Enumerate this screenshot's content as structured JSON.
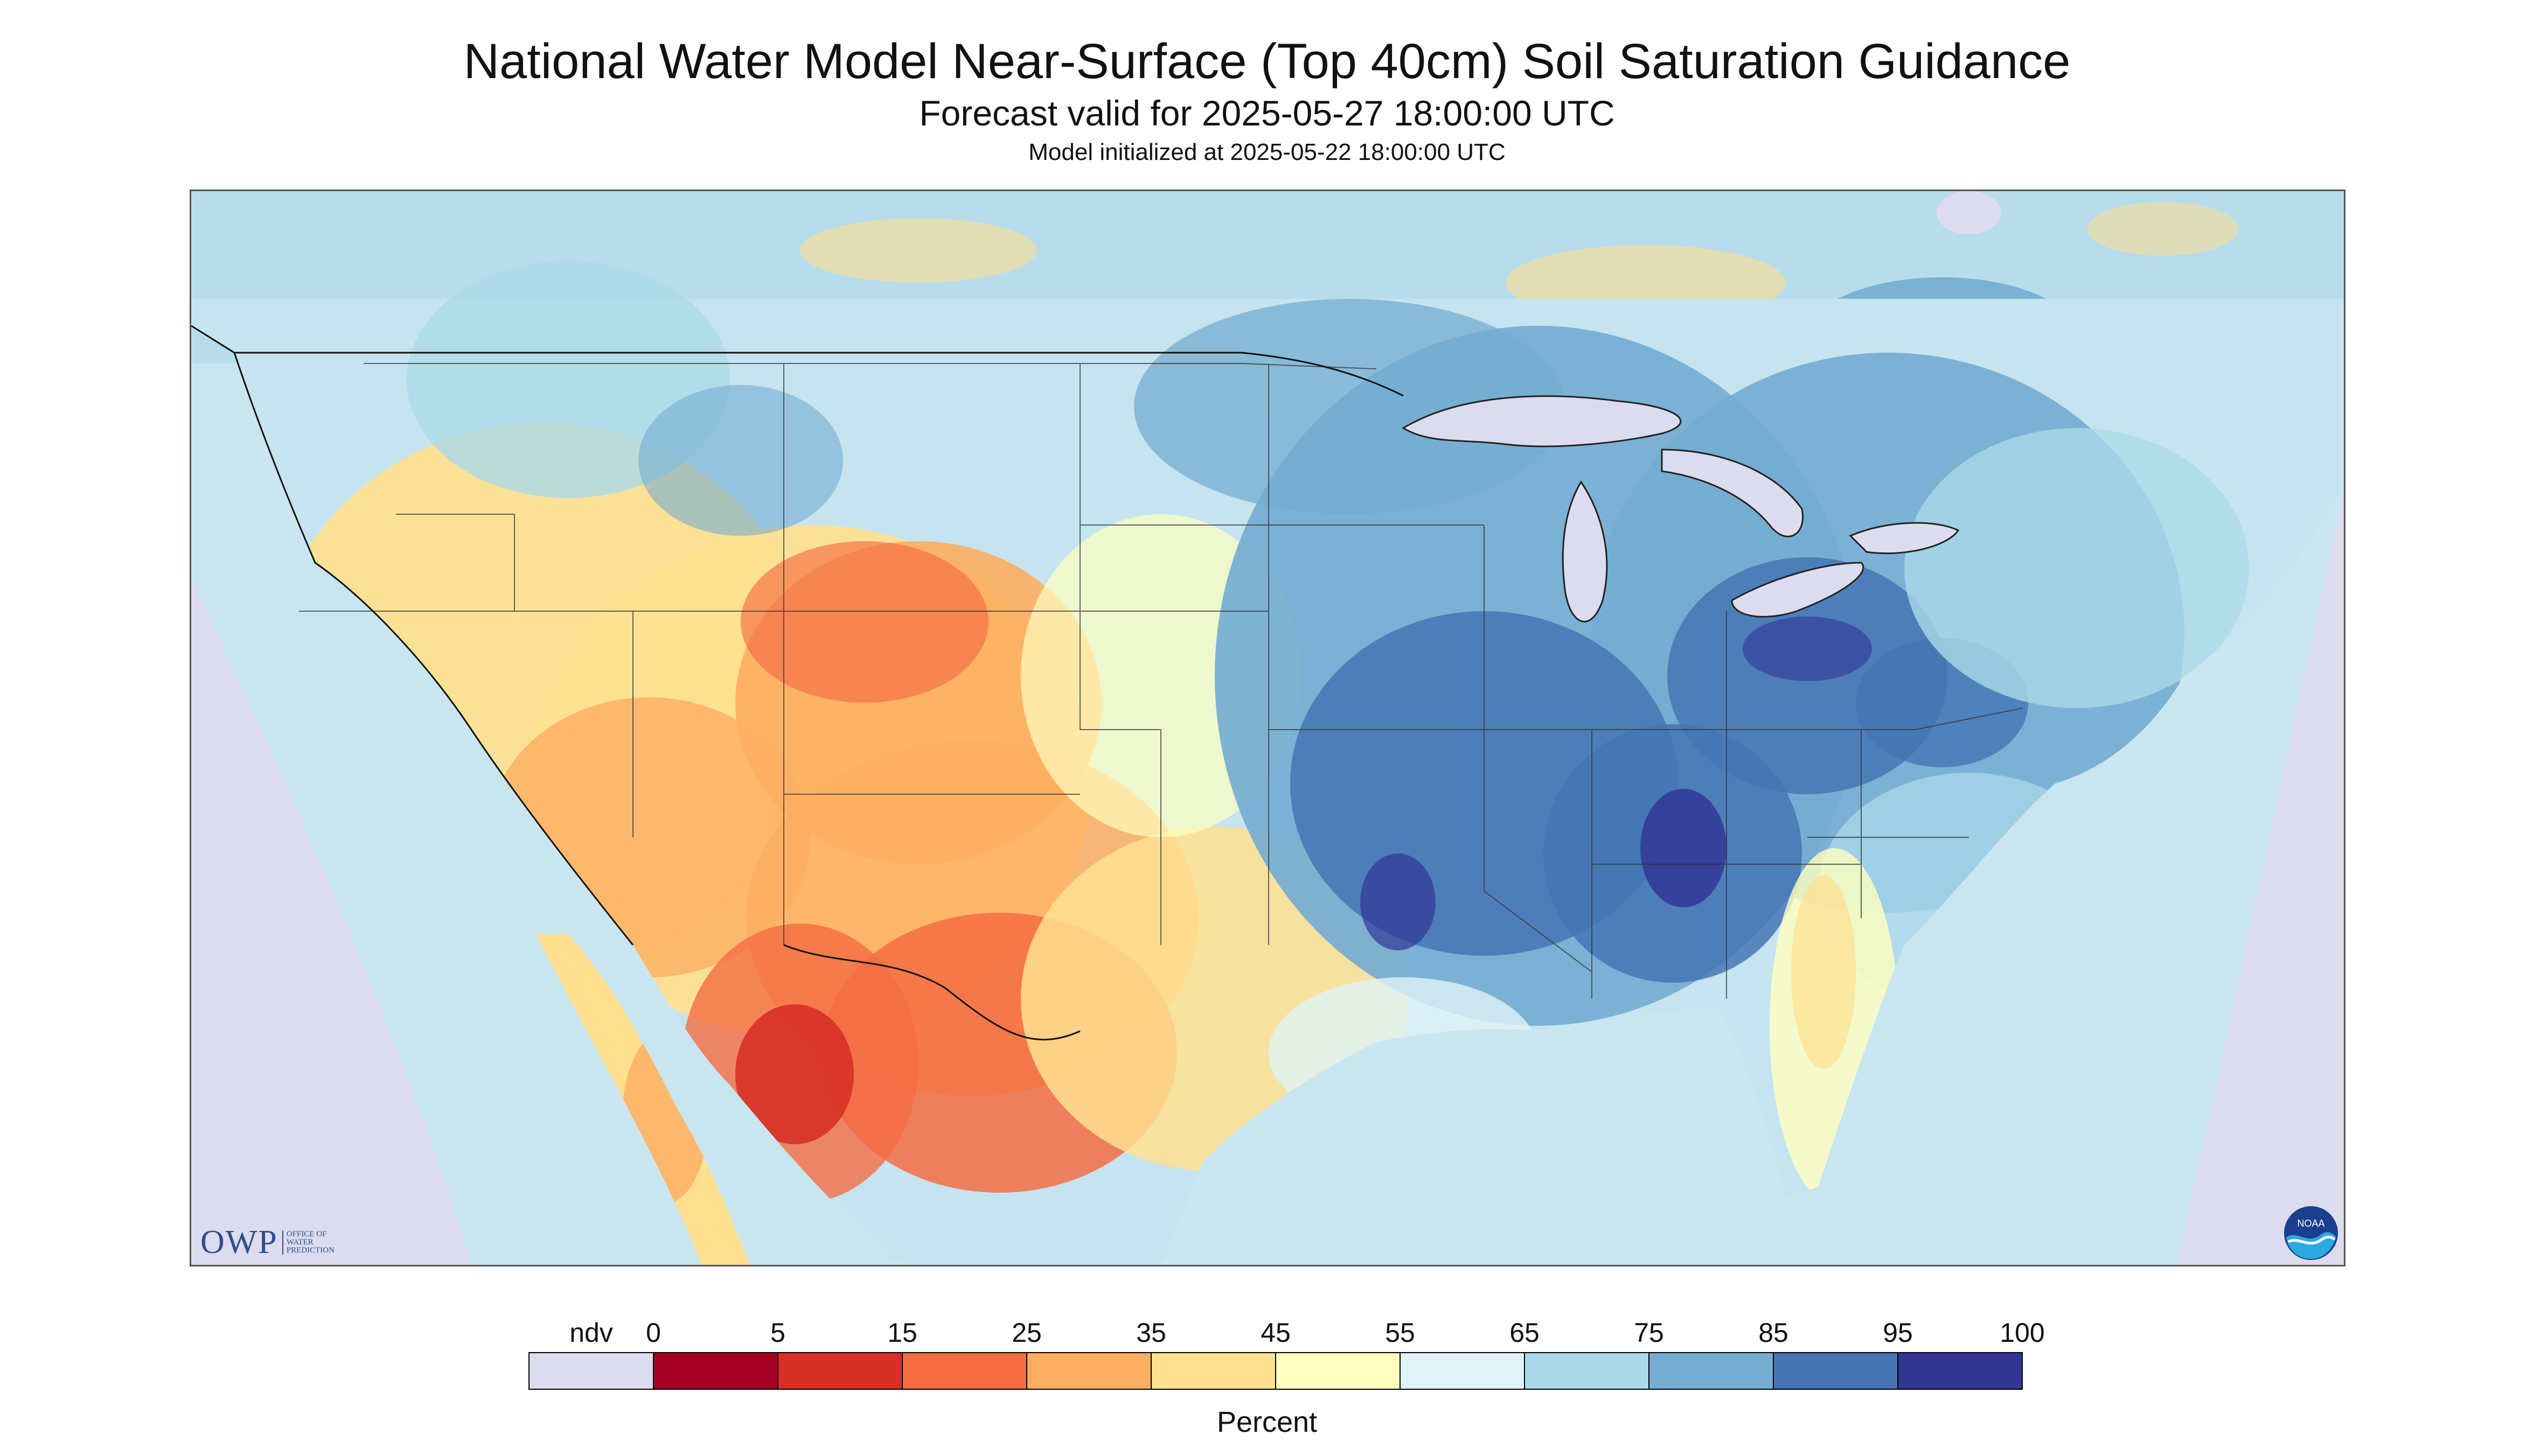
{
  "header": {
    "title": "National Water Model Near-Surface (Top 40cm) Soil Saturation Guidance",
    "forecast_line": "Forecast valid for 2025-05-27 18:00:00 UTC",
    "init_line": "Model initialized at 2025-05-22 18:00:00 UTC"
  },
  "logos": {
    "owp_text": "OWP",
    "owp_sub": [
      "Office of",
      "Water",
      "Prediction"
    ],
    "noaa_text": "NOAA"
  },
  "legend": {
    "title": "Percent",
    "ndv_label": "ndv",
    "ndv_color": "#dcdcee",
    "ticks": [
      "0",
      "5",
      "15",
      "25",
      "35",
      "45",
      "55",
      "65",
      "75",
      "85",
      "95",
      "100"
    ],
    "bins": [
      {
        "from": 0,
        "to": 5,
        "color": "#a50026"
      },
      {
        "from": 5,
        "to": 15,
        "color": "#d73027"
      },
      {
        "from": 15,
        "to": 25,
        "color": "#f46d43"
      },
      {
        "from": 25,
        "to": 35,
        "color": "#fdae61"
      },
      {
        "from": 35,
        "to": 45,
        "color": "#fee090"
      },
      {
        "from": 45,
        "to": 55,
        "color": "#ffffbf"
      },
      {
        "from": 55,
        "to": 65,
        "color": "#e0f3f8"
      },
      {
        "from": 65,
        "to": 75,
        "color": "#abd9e9"
      },
      {
        "from": 75,
        "to": 85,
        "color": "#74add1"
      },
      {
        "from": 85,
        "to": 95,
        "color": "#4575b4"
      },
      {
        "from": 95,
        "to": 100,
        "color": "#313695"
      }
    ]
  }
}
